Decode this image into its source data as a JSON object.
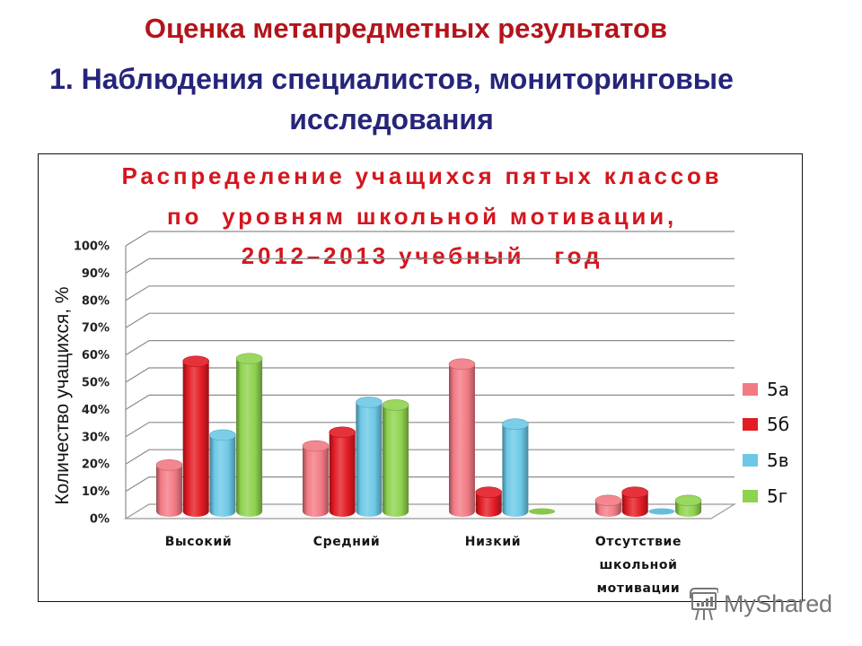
{
  "page": {
    "heading": "Оценка метапредметных результатов",
    "subheading_line1": "1. Наблюдения специалистов, мониторинговые",
    "subheading_line2": "исследования"
  },
  "colors": {
    "heading": "#b3141c",
    "subheading": "#25257a",
    "chart_title": "#d4161e",
    "gridline": "#8c8c8c"
  },
  "chart_data": {
    "type": "bar",
    "variant": "3d-clustered-cylinder",
    "title": [
      "Распределение учащихся пятых классов",
      "по  уровням школьной мотивации,",
      "2012–2013 учебный   год"
    ],
    "xlabel": "",
    "ylabel": "Количество учащихся, %",
    "categories": [
      "Высокий",
      "Средний",
      "Низкий",
      "Отсутствие школьной мотивации"
    ],
    "category_label_lines": [
      [
        "Высокий"
      ],
      [
        "Средний"
      ],
      [
        "Низкий"
      ],
      [
        "Отсутствие",
        "школьной",
        "мотивации"
      ]
    ],
    "series": [
      {
        "name": "5а",
        "color": "#f27a84",
        "values": [
          17,
          24,
          54,
          4
        ]
      },
      {
        "name": "5б",
        "color": "#e31b24",
        "values": [
          55,
          29,
          7,
          7
        ]
      },
      {
        "name": "5в",
        "color": "#6cc8e6",
        "values": [
          28,
          40,
          32,
          0
        ]
      },
      {
        "name": "5г",
        "color": "#8ed24e",
        "values": [
          56,
          39,
          0,
          4
        ]
      }
    ],
    "yticks": [
      "0%",
      "10%",
      "20%",
      "30%",
      "40%",
      "50%",
      "60%",
      "70%",
      "80%",
      "90%",
      "100%"
    ],
    "ylim": [
      0,
      100
    ],
    "grid": true,
    "legend_position": "right"
  },
  "watermark": {
    "text": "MyShared"
  }
}
